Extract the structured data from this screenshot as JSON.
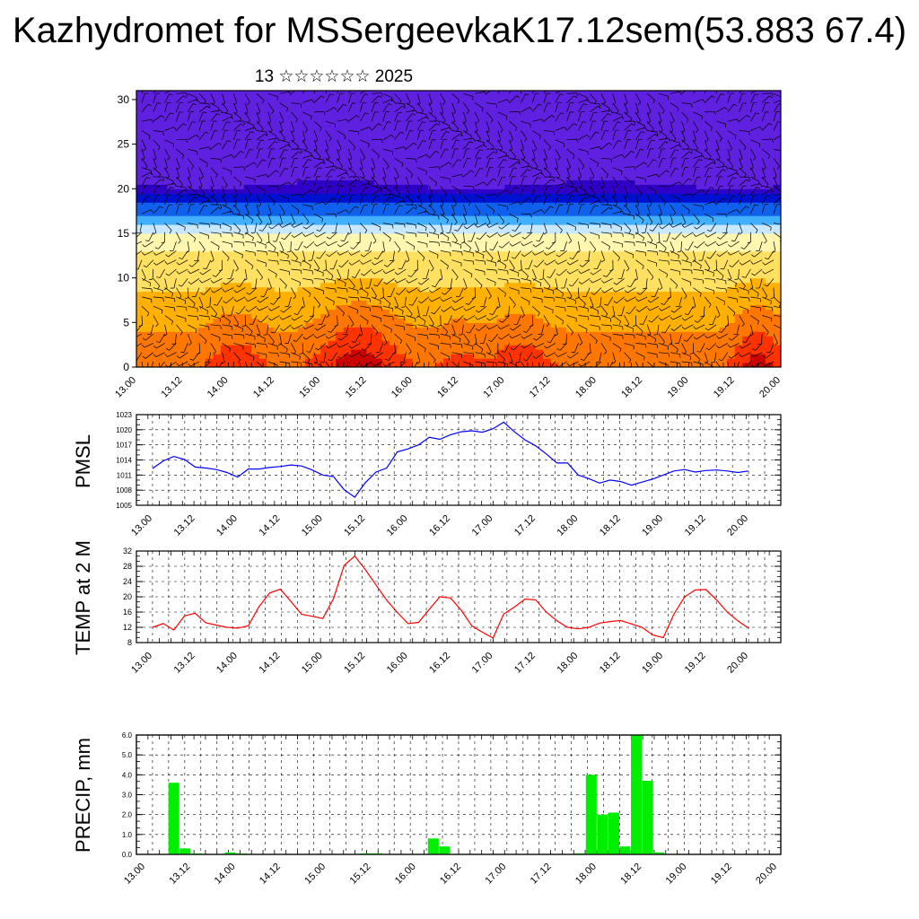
{
  "title": "Kazhydromet for MSSergeevkaK17.12sem(53.883 67.4)",
  "subtitle": "13 ☆☆☆☆☆☆ 2025",
  "x_tick_labels": [
    "13.00",
    "13.12",
    "14.00",
    "14.12",
    "15.00",
    "15.12",
    "16.00",
    "16.12",
    "17.00",
    "17.12",
    "18.00",
    "18.12",
    "19.00",
    "19.12",
    "20.00"
  ],
  "colors": {
    "pmsl": "#0000ff",
    "temp": "#ff0000",
    "precip": "#00ee00"
  },
  "chart_data": [
    {
      "type": "heatmap",
      "description": "time-height cross-section",
      "y_ticks": [
        0,
        5,
        10,
        15,
        20,
        25,
        30
      ],
      "ylim": [
        0,
        31
      ],
      "xlim": [
        0,
        168
      ],
      "color_scale": [
        "#cc0000",
        "#ff3300",
        "#ff7700",
        "#ffb000",
        "#ffe060",
        "#fff7b0",
        "#c8e8ff",
        "#40b0ff",
        "#1060ee",
        "#0010d0",
        "#3000c8",
        "#6020e0"
      ]
    },
    {
      "type": "line",
      "ylabel": "PMSL",
      "y_ticks": [
        1005,
        1008,
        1011,
        1014,
        1017,
        1020,
        1023
      ],
      "ylim": [
        1005,
        1023
      ],
      "xlim": [
        0,
        168
      ],
      "x": [
        0,
        3,
        6,
        9,
        12,
        15,
        18,
        21,
        24,
        27,
        30,
        33,
        36,
        39,
        42,
        45,
        48,
        51,
        54,
        57,
        60,
        63,
        66,
        69,
        72,
        75,
        78,
        81,
        84,
        87,
        90,
        93,
        96,
        99,
        102,
        105,
        108,
        111,
        114,
        117,
        120,
        123,
        126,
        129,
        132,
        135,
        138,
        141,
        144,
        147,
        150,
        153,
        156,
        159,
        162,
        165,
        168
      ],
      "y": [
        1012.3,
        1013.8,
        1014.7,
        1014.1,
        1012.6,
        1012.4,
        1012.1,
        1011.5,
        1010.6,
        1012.2,
        1012.2,
        1012.5,
        1012.7,
        1013.0,
        1012.8,
        1012.0,
        1011.0,
        1010.7,
        1008.1,
        1006.6,
        1009.5,
        1011.6,
        1012.4,
        1015.6,
        1016.2,
        1017.0,
        1018.5,
        1018.1,
        1019.0,
        1019.6,
        1019.8,
        1019.5,
        1020.2,
        1021.5,
        1019.6,
        1018.0,
        1016.8,
        1015.2,
        1013.4,
        1013.4,
        1011.0,
        1010.3,
        1009.4,
        1010.0,
        1009.7,
        1009.0,
        1009.6,
        1010.2,
        1011.0,
        1011.8,
        1012.1,
        1011.6,
        1011.9,
        1012.0,
        1011.8,
        1011.5,
        1011.8
      ]
    },
    {
      "type": "line",
      "ylabel": "TEMP at 2 M",
      "y_ticks": [
        8,
        12,
        16,
        20,
        24,
        28,
        32
      ],
      "ylim": [
        8,
        32
      ],
      "xlim": [
        0,
        168
      ],
      "x": [
        0,
        3,
        6,
        9,
        12,
        15,
        18,
        21,
        24,
        27,
        30,
        33,
        36,
        39,
        42,
        45,
        48,
        51,
        54,
        57,
        60,
        63,
        66,
        69,
        72,
        75,
        78,
        81,
        84,
        87,
        90,
        93,
        96,
        99,
        102,
        105,
        108,
        111,
        114,
        117,
        120,
        123,
        126,
        129,
        132,
        135,
        138,
        141,
        144,
        147,
        150,
        153,
        156,
        159,
        162,
        165,
        168
      ],
      "y": [
        12,
        13,
        11.3,
        15,
        15.7,
        13.2,
        12.6,
        12,
        11.8,
        12.4,
        17.4,
        21.0,
        22.0,
        18.8,
        15.4,
        14.9,
        14.3,
        19.5,
        28.2,
        30.7,
        27.1,
        23.1,
        19.1,
        15.9,
        13.0,
        13.3,
        16.7,
        20.0,
        19.7,
        16.5,
        12.4,
        10.7,
        9.2,
        15.5,
        17.3,
        19.4,
        19.2,
        16.0,
        13.7,
        12.0,
        11.6,
        12.0,
        13.1,
        13.5,
        13.8,
        12.9,
        12.0,
        10.0,
        9.3,
        15.5,
        20.0,
        21.8,
        21.9,
        19.2,
        16.0,
        13.7,
        11.8
      ]
    },
    {
      "type": "bar",
      "ylabel": "PRECIP, mm",
      "y_ticks": [
        0.0,
        1.0,
        2.0,
        3.0,
        4.0,
        5.0,
        6.0
      ],
      "ylim": [
        0,
        6
      ],
      "xlim": [
        0,
        168
      ],
      "bar_width_hours": 3,
      "x": [
        6,
        9,
        12,
        21,
        24,
        57,
        60,
        75,
        78,
        114,
        117,
        120,
        123,
        126,
        129,
        132,
        135,
        138,
        141
      ],
      "values": [
        3.6,
        0.3,
        0.05,
        0.1,
        0.05,
        0.05,
        0.05,
        0.8,
        0.4,
        0.05,
        4.0,
        2.0,
        2.1,
        0.4,
        6.0,
        3.7,
        0.1,
        0.0,
        0.0
      ]
    }
  ]
}
